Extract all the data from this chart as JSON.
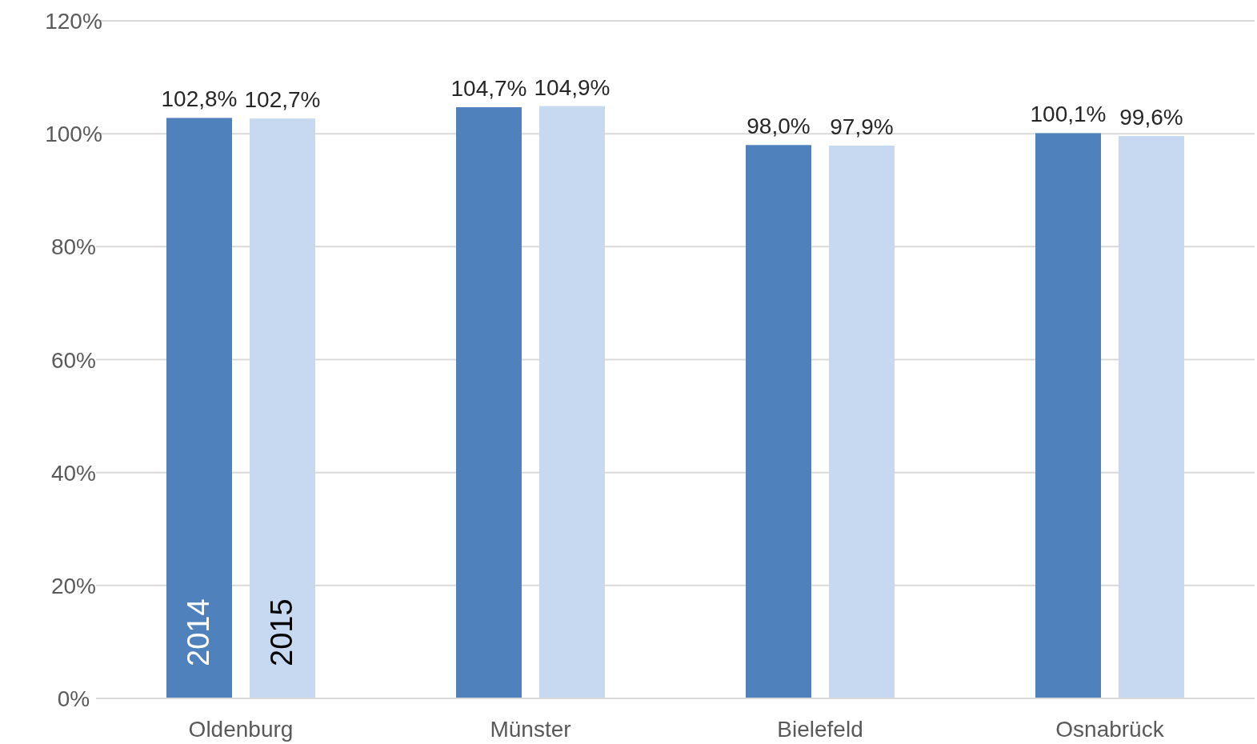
{
  "chart_data": {
    "type": "bar",
    "categories": [
      "Oldenburg",
      "Münster",
      "Bielefeld",
      "Osnabrück"
    ],
    "series": [
      {
        "name": "2014",
        "color": "#4f81bd",
        "values": [
          102.8,
          104.7,
          98.0,
          100.1
        ],
        "value_labels": [
          "102,8%",
          "104,7%",
          "98,0%",
          "100,1%"
        ]
      },
      {
        "name": "2015",
        "color": "#c6d9f1",
        "values": [
          102.7,
          104.9,
          97.9,
          99.6
        ],
        "value_labels": [
          "102,7%",
          "104,9%",
          "97,9%",
          "99,6%"
        ]
      }
    ],
    "ylim": [
      0,
      120
    ],
    "yticks": [
      {
        "value": 0,
        "label": "0%"
      },
      {
        "value": 20,
        "label": "20%"
      },
      {
        "value": 40,
        "label": "40%"
      },
      {
        "value": 60,
        "label": "60%"
      },
      {
        "value": 80,
        "label": "80%"
      },
      {
        "value": 100,
        "label": "100%"
      },
      {
        "value": 120,
        "label": "120%"
      }
    ],
    "grid": "y"
  }
}
